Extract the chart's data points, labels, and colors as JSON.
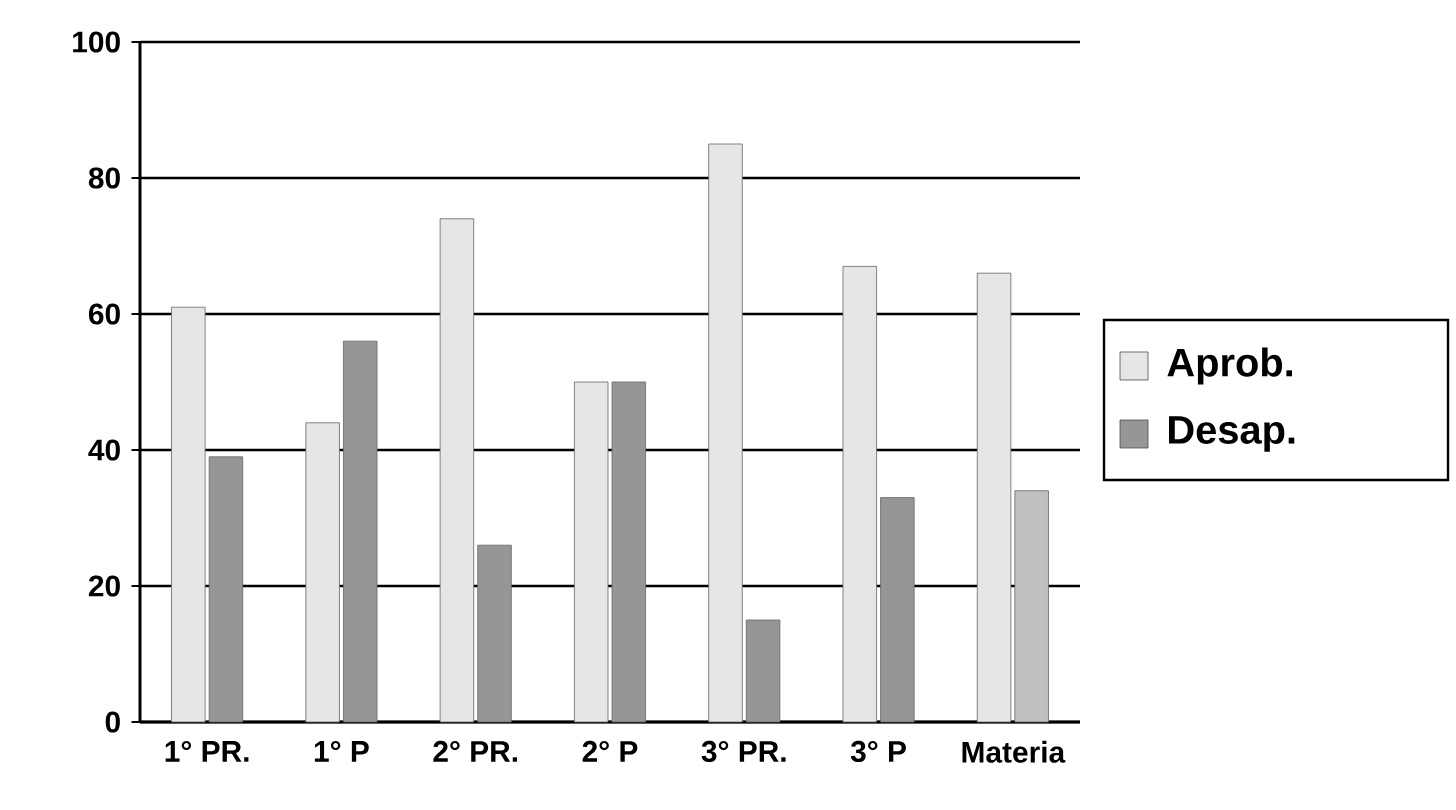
{
  "chart_data": {
    "type": "bar",
    "categories": [
      "1° PR.",
      "1° P",
      "2° PR.",
      "2° P",
      "3° PR.",
      "3° P",
      "Materia"
    ],
    "series": [
      {
        "name": "Aprob.",
        "color": "#e6e6e6",
        "values": [
          61,
          44,
          74,
          50,
          85,
          67,
          66
        ]
      },
      {
        "name": "Desap.",
        "color": "#969696",
        "colors": [
          "#969696",
          "#969696",
          "#969696",
          "#969696",
          "#969696",
          "#969696",
          "#c0c0c0"
        ],
        "values": [
          39,
          56,
          26,
          50,
          15,
          33,
          34
        ]
      }
    ],
    "ylim": [
      0,
      100
    ],
    "yticks": [
      0,
      20,
      40,
      60,
      80,
      100
    ],
    "grid": "y",
    "legend": "right"
  }
}
